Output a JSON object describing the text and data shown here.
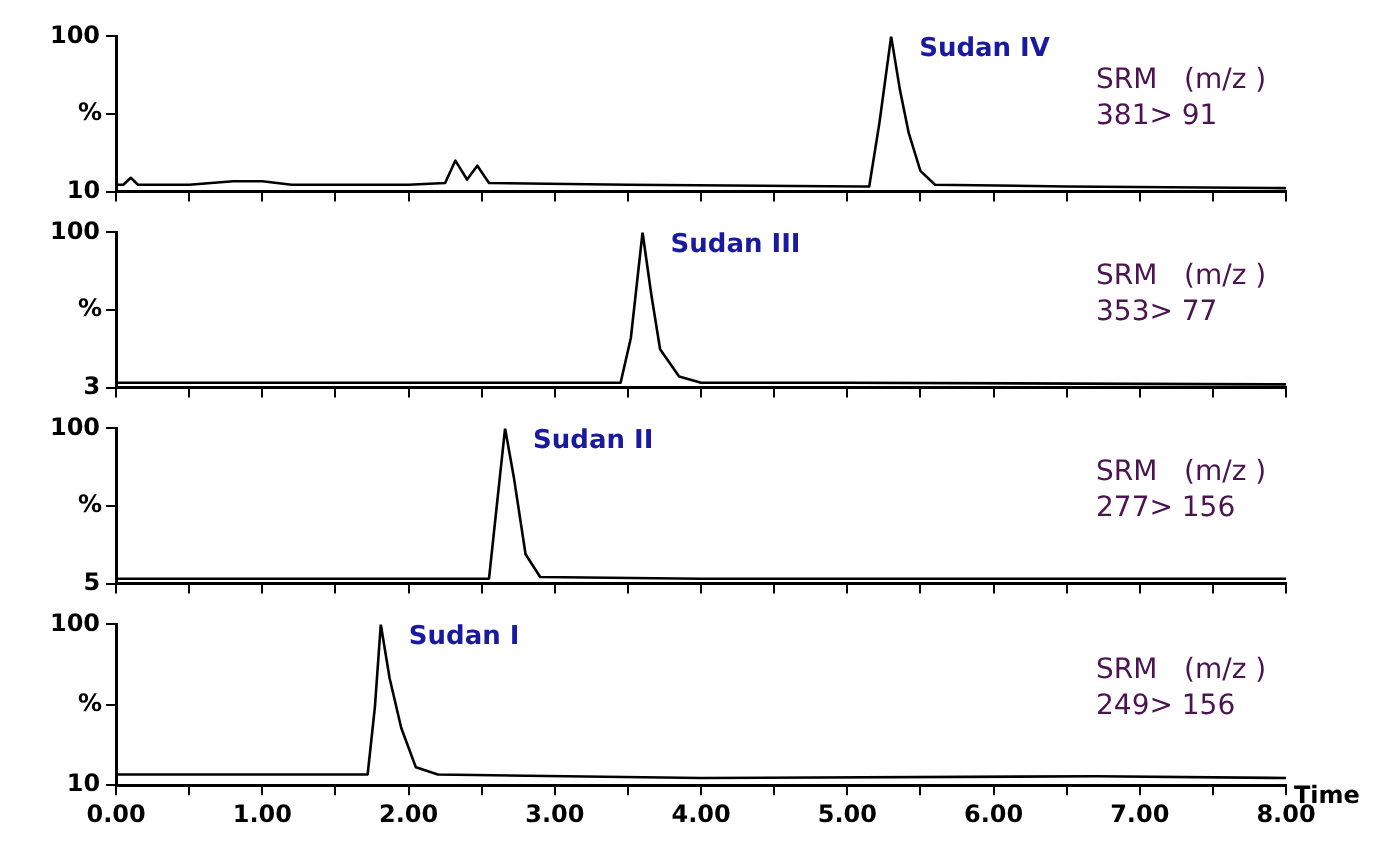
{
  "chart_data": [
    {
      "type": "line",
      "ylabel": "%",
      "tick_labels": "y",
      "grid": false,
      "xlim": [
        0,
        8
      ],
      "ylim": [
        10,
        100
      ],
      "yticks": [
        10,
        {
          "value": 55,
          "label": null
        },
        100
      ],
      "xticks": [
        {
          "value": 0,
          "label": null
        },
        {
          "value": 0.5,
          "label": null
        },
        {
          "value": 1,
          "label": null
        },
        {
          "value": 1.5,
          "label": null
        },
        {
          "value": 2,
          "label": null
        },
        {
          "value": 2.5,
          "label": null
        },
        {
          "value": 3,
          "label": null
        },
        {
          "value": 3.5,
          "label": null
        },
        {
          "value": 4,
          "label": null
        },
        {
          "value": 4.5,
          "label": null
        },
        {
          "value": 5,
          "label": null
        },
        {
          "value": 5.5,
          "label": null
        },
        {
          "value": 6,
          "label": null
        },
        {
          "value": 6.5,
          "label": null
        },
        {
          "value": 7,
          "label": null
        },
        {
          "value": 7.5,
          "label": null
        },
        {
          "value": 8,
          "label": null
        }
      ],
      "x": [
        0,
        0.05,
        0.1,
        0.15,
        0.5,
        0.8,
        0.9,
        1.0,
        1.2,
        2.0,
        2.25,
        2.32,
        2.4,
        2.47,
        2.55,
        3.5,
        5.1,
        5.15,
        5.22,
        5.3,
        5.36,
        5.42,
        5.5,
        5.6,
        6.5,
        8
      ],
      "series": [
        {
          "color": "#000000",
          "values": [
            14,
            14,
            18,
            14,
            14,
            16,
            16,
            16,
            14,
            14,
            15,
            28,
            17,
            25,
            15,
            14,
            13,
            13,
            50,
            100,
            69,
            44,
            22,
            14,
            13,
            12
          ]
        }
      ],
      "annotations": [
        {
          "text": "Sudan IV",
          "x": 5.3,
          "y": 100
        },
        "SRM   (m/z )",
        "381> 91"
      ]
    },
    {
      "type": "line",
      "ylabel": "%",
      "tick_labels": "y",
      "grid": false,
      "xlim": [
        0,
        8
      ],
      "ylim": [
        3,
        100
      ],
      "yticks": [
        3,
        {
          "value": 51.5,
          "label": null
        },
        100
      ],
      "xticks": [
        {
          "value": 0,
          "label": null
        },
        {
          "value": 0.5,
          "label": null
        },
        {
          "value": 1,
          "label": null
        },
        {
          "value": 1.5,
          "label": null
        },
        {
          "value": 2,
          "label": null
        },
        {
          "value": 2.5,
          "label": null
        },
        {
          "value": 3,
          "label": null
        },
        {
          "value": 3.5,
          "label": null
        },
        {
          "value": 4,
          "label": null
        },
        {
          "value": 4.5,
          "label": null
        },
        {
          "value": 5,
          "label": null
        },
        {
          "value": 5.5,
          "label": null
        },
        {
          "value": 6,
          "label": null
        },
        {
          "value": 6.5,
          "label": null
        },
        {
          "value": 7,
          "label": null
        },
        {
          "value": 7.5,
          "label": null
        },
        {
          "value": 8,
          "label": null
        }
      ],
      "x": [
        0,
        2,
        3.45,
        3.52,
        3.6,
        3.66,
        3.72,
        3.85,
        4.0,
        5,
        8
      ],
      "series": [
        {
          "color": "#000000",
          "values": [
            6,
            6,
            6,
            34,
            100,
            61,
            27,
            10,
            6,
            6,
            5
          ]
        }
      ],
      "annotations": [
        {
          "text": "Sudan III",
          "x": 3.6,
          "y": 100
        },
        "SRM   (m/z )",
        "353> 77"
      ]
    },
    {
      "type": "line",
      "ylabel": "%",
      "tick_labels": "y",
      "grid": false,
      "xlim": [
        0,
        8
      ],
      "ylim": [
        5,
        100
      ],
      "yticks": [
        5,
        {
          "value": 52.5,
          "label": null
        },
        100
      ],
      "xticks": [
        {
          "value": 0,
          "label": null
        },
        {
          "value": 0.5,
          "label": null
        },
        {
          "value": 1,
          "label": null
        },
        {
          "value": 1.5,
          "label": null
        },
        {
          "value": 2,
          "label": null
        },
        {
          "value": 2.5,
          "label": null
        },
        {
          "value": 3,
          "label": null
        },
        {
          "value": 3.5,
          "label": null
        },
        {
          "value": 4,
          "label": null
        },
        {
          "value": 4.5,
          "label": null
        },
        {
          "value": 5,
          "label": null
        },
        {
          "value": 5.5,
          "label": null
        },
        {
          "value": 6,
          "label": null
        },
        {
          "value": 6.5,
          "label": null
        },
        {
          "value": 7,
          "label": null
        },
        {
          "value": 7.5,
          "label": null
        },
        {
          "value": 8,
          "label": null
        }
      ],
      "x": [
        0,
        1,
        2.55,
        2.6,
        2.66,
        2.72,
        2.8,
        2.9,
        4,
        8
      ],
      "series": [
        {
          "color": "#000000",
          "values": [
            8,
            8,
            8,
            50,
            100,
            70,
            23,
            9,
            8,
            8
          ]
        }
      ],
      "annotations": [
        {
          "text": "Sudan II",
          "x": 2.66,
          "y": 100
        },
        "SRM   (m/z )",
        "277> 156"
      ]
    },
    {
      "type": "line",
      "ylabel": "%",
      "xlabel": "Time",
      "grid": false,
      "xlim": [
        0,
        8
      ],
      "ylim": [
        10,
        100
      ],
      "yticks": [
        10,
        {
          "value": 55,
          "label": null
        },
        100
      ],
      "xticks": [
        {
          "value": 0,
          "label": "0.00"
        },
        {
          "value": 0.5,
          "label": null
        },
        {
          "value": 1,
          "label": "1.00"
        },
        {
          "value": 1.5,
          "label": null
        },
        {
          "value": 2,
          "label": "2.00"
        },
        {
          "value": 2.5,
          "label": null
        },
        {
          "value": 3,
          "label": "3.00"
        },
        {
          "value": 3.5,
          "label": null
        },
        {
          "value": 4,
          "label": "4.00"
        },
        {
          "value": 4.5,
          "label": null
        },
        {
          "value": 5,
          "label": "5.00"
        },
        {
          "value": 5.5,
          "label": null
        },
        {
          "value": 6,
          "label": "6.00"
        },
        {
          "value": 6.5,
          "label": null
        },
        {
          "value": 7,
          "label": "7.00"
        },
        {
          "value": 7.5,
          "label": null
        },
        {
          "value": 8,
          "label": "8.00"
        }
      ],
      "x": [
        0,
        1,
        1.72,
        1.77,
        1.81,
        1.87,
        1.95,
        2.05,
        2.2,
        4,
        6.7,
        8
      ],
      "series": [
        {
          "color": "#000000",
          "values": [
            16,
            16,
            16,
            54,
            100,
            70,
            42,
            20,
            16,
            14,
            15,
            14
          ]
        }
      ],
      "annotations": [
        {
          "text": "Sudan I",
          "x": 1.81,
          "y": 100
        },
        "SRM   (m/z )",
        "249> 156"
      ]
    }
  ]
}
